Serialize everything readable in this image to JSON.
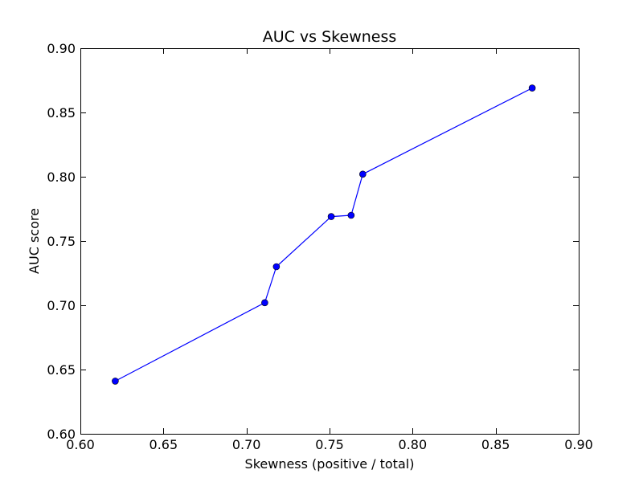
{
  "chart_data": {
    "type": "line",
    "title": "AUC vs Skewness",
    "xlabel": "Skewness (positive / total)",
    "ylabel": "AUC score",
    "xlim": [
      0.6,
      0.9
    ],
    "ylim": [
      0.6,
      0.9
    ],
    "x_ticks": [
      "0.60",
      "0.65",
      "0.70",
      "0.75",
      "0.80",
      "0.85",
      "0.90"
    ],
    "y_ticks": [
      "0.60",
      "0.65",
      "0.70",
      "0.75",
      "0.80",
      "0.85",
      "0.90"
    ],
    "grid": false,
    "series": [
      {
        "color": "#0000ff",
        "marker": "circle",
        "x": [
          0.621,
          0.711,
          0.718,
          0.751,
          0.763,
          0.77,
          0.872
        ],
        "y": [
          0.641,
          0.702,
          0.73,
          0.769,
          0.77,
          0.802,
          0.869
        ]
      }
    ]
  }
}
